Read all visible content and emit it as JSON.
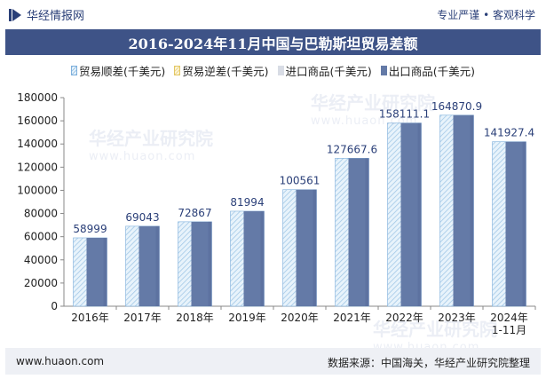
{
  "header": {
    "brand": "华经情报网",
    "slogan": "专业严谨 • 客观科学"
  },
  "footer": {
    "url": "www.huaon.com",
    "source": "数据来源：中国海关，华经产业研究院整理"
  },
  "watermark": {
    "text": "华经产业研究院",
    "url": "www.huaon.com"
  },
  "colors": {
    "export": "#647aa7",
    "export_right": "#5a6f9d",
    "surplus": "#9fc6e6",
    "deficit": "#f0d98a",
    "import": "#d8dce5",
    "title_bg": "#3e5387"
  },
  "chart_data": {
    "type": "bar",
    "title": "2016-2024年11月中国与巴勒斯坦贸易差额",
    "categories": [
      "2016年",
      "2017年",
      "2018年",
      "2019年",
      "2020年",
      "2021年",
      "2022年",
      "2023年",
      "2024年\n1-11月"
    ],
    "series": [
      {
        "name": "贸易顺差(千美元)",
        "values": [
          58999,
          69043,
          72867,
          81994,
          100561,
          127667.6,
          158111.1,
          164870.9,
          141927.4
        ]
      },
      {
        "name": "贸易逆差(千美元)",
        "values": [
          0,
          0,
          0,
          0,
          0,
          0,
          0,
          0,
          0
        ]
      },
      {
        "name": "进口商品(千美元)",
        "values": [
          0,
          0,
          0,
          0,
          0,
          0,
          0,
          0,
          0
        ]
      },
      {
        "name": "出口商品(千美元)",
        "values": [
          58999,
          69043,
          72867,
          81994,
          100561,
          127667.6,
          158111.1,
          164870.9,
          141927.4
        ]
      }
    ],
    "data_labels": [
      "58999",
      "69043",
      "72867",
      "81994",
      "100561",
      "127667.6",
      "158111.1",
      "164870.9",
      "141927.4"
    ],
    "ylim": [
      0,
      180000
    ],
    "yticks": [
      "0",
      "20000",
      "40000",
      "60000",
      "80000",
      "100000",
      "120000",
      "140000",
      "160000",
      "180000"
    ],
    "grid": false,
    "legend_position": "top"
  }
}
